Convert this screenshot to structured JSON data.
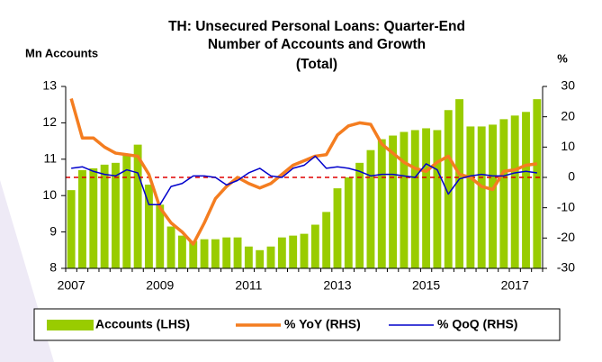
{
  "chart_data": {
    "type": "bar_line",
    "title": [
      "TH: Unsecured Personal Loans: Quarter-End",
      "Number of Accounts and Growth",
      "(Total)"
    ],
    "y_label": "Mn Accounts",
    "y2_label": "%",
    "categories": [
      "2007",
      null,
      null,
      null,
      null,
      null,
      null,
      null,
      "2009",
      null,
      null,
      null,
      null,
      null,
      null,
      null,
      "2011",
      null,
      null,
      null,
      null,
      null,
      null,
      null,
      "2013",
      null,
      null,
      null,
      null,
      null,
      null,
      null,
      "2015",
      null,
      null,
      null,
      null,
      null,
      null,
      null,
      "2017",
      null,
      null
    ],
    "series": [
      {
        "name": "Accounts (LHS)",
        "type": "bar",
        "color": "#99cc00",
        "axis": "y",
        "values": [
          10.15,
          10.7,
          10.75,
          10.85,
          10.9,
          11.1,
          11.4,
          10.3,
          9.75,
          9.15,
          8.9,
          8.75,
          8.8,
          8.8,
          8.85,
          8.85,
          8.6,
          8.5,
          8.6,
          8.85,
          8.9,
          8.95,
          9.2,
          9.55,
          10.2,
          10.5,
          10.9,
          11.25,
          11.55,
          11.65,
          11.75,
          11.8,
          11.85,
          11.8,
          12.35,
          12.65,
          11.9,
          11.9,
          11.95,
          12.1,
          12.2,
          12.3,
          12.65
        ]
      },
      {
        "name": "% YoY (RHS)",
        "type": "line",
        "color": "#f47d20",
        "axis": "y2",
        "values": [
          26,
          13,
          13,
          10,
          8,
          7.5,
          7,
          1,
          -10,
          -15,
          -18,
          -22,
          -15,
          -7,
          -3,
          0,
          -2,
          -3.5,
          -2,
          1,
          4,
          5.5,
          7,
          7.5,
          14,
          17,
          18,
          17.5,
          11,
          8,
          5,
          3,
          2,
          5,
          7,
          1,
          0,
          -3,
          -4,
          2,
          2.5,
          4,
          4.5
        ]
      },
      {
        "name": "% QoQ (RHS)",
        "type": "line",
        "color": "#0000cc",
        "axis": "y2",
        "values": [
          3,
          3.5,
          2,
          1,
          0.5,
          2.5,
          1.5,
          -9,
          -9,
          -3,
          -2,
          0.5,
          0.5,
          0,
          -2.5,
          -1,
          1.5,
          3,
          0.5,
          0,
          3,
          4,
          7,
          3,
          3.5,
          3,
          2,
          0.5,
          1,
          1,
          0.5,
          0,
          4.5,
          2.5,
          -5.5,
          -0.5,
          0.5,
          1,
          0.5,
          0.5,
          1.5,
          2,
          1.5
        ]
      }
    ],
    "ylim": [
      8,
      13
    ],
    "yticks": [
      8,
      9,
      10,
      11,
      12,
      13
    ],
    "y2lim": [
      -30,
      30
    ],
    "y2ticks": [
      -30,
      -20,
      -10,
      0,
      10,
      20,
      30
    ],
    "y2_reference": 0,
    "reference_color": "#e00000",
    "legend": "bottom"
  }
}
